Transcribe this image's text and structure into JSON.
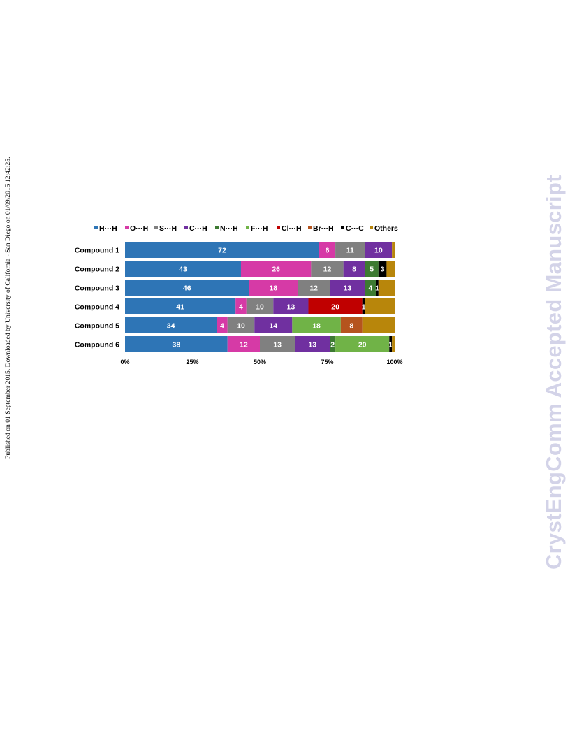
{
  "sidebar_note": "Published on 01 September 2015. Downloaded by University of California - San Diego on 01/09/2015 12:42:25.",
  "watermark": "CrystEngComm Accepted Manuscript",
  "chart_data": {
    "type": "bar",
    "orientation": "horizontal",
    "stacked": "percent",
    "categories": [
      "Compound 1",
      "Compound 2",
      "Compound 3",
      "Compound 4",
      "Compound 5",
      "Compound 6"
    ],
    "series": [
      {
        "name": "H···H",
        "color": "#2e75b6",
        "values": [
          72,
          43,
          46,
          41,
          34,
          38
        ],
        "labels": [
          "72",
          "43",
          "46",
          "41",
          "34",
          "38"
        ]
      },
      {
        "name": "O···H",
        "color": "#d63aa6",
        "values": [
          6,
          26,
          18,
          4,
          4,
          12
        ],
        "labels": [
          "6",
          "26",
          "18",
          "4",
          "4",
          "12"
        ]
      },
      {
        "name": "S···H",
        "color": "#808080",
        "values": [
          11,
          12,
          12,
          10,
          10,
          13
        ],
        "labels": [
          "11",
          "12",
          "12",
          "10",
          "10",
          "13"
        ]
      },
      {
        "name": "C···H",
        "color": "#7030a0",
        "values": [
          10,
          8,
          13,
          13,
          14,
          13
        ],
        "labels": [
          "10",
          "8",
          "13",
          "13",
          "14",
          "13"
        ]
      },
      {
        "name": "N···H",
        "color": "#3d7a32",
        "values": [
          0,
          5,
          4,
          0,
          0,
          2
        ],
        "labels": [
          "",
          "5",
          "4",
          "",
          "",
          "2"
        ]
      },
      {
        "name": "F···H",
        "color": "#70b347",
        "values": [
          0,
          0,
          0,
          0,
          18,
          20
        ],
        "labels": [
          "",
          "",
          "",
          "",
          "18",
          "20"
        ]
      },
      {
        "name": "Cl···H",
        "color": "#c00000",
        "values": [
          0,
          0,
          0,
          20,
          0,
          0
        ],
        "labels": [
          "",
          "",
          "",
          "20",
          "",
          ""
        ]
      },
      {
        "name": "Br···H",
        "color": "#b5541e",
        "values": [
          0,
          0,
          0,
          0,
          8,
          0
        ],
        "labels": [
          "",
          "",
          "",
          "",
          "8",
          ""
        ]
      },
      {
        "name": "C···C",
        "color": "#000000",
        "values": [
          0,
          3,
          1,
          1,
          0,
          1
        ],
        "labels": [
          "",
          "3",
          "1",
          "1",
          "",
          "1"
        ]
      },
      {
        "name": "Others",
        "color": "#b8860b",
        "values": [
          1,
          3,
          6,
          11,
          12,
          1
        ],
        "labels": [
          "",
          "",
          "",
          "",
          "",
          ""
        ]
      }
    ],
    "xlim": [
      0,
      100
    ],
    "xticks": [
      "0%",
      "25%",
      "50%",
      "75%",
      "100%"
    ],
    "legend_position": "top",
    "grid": false
  }
}
